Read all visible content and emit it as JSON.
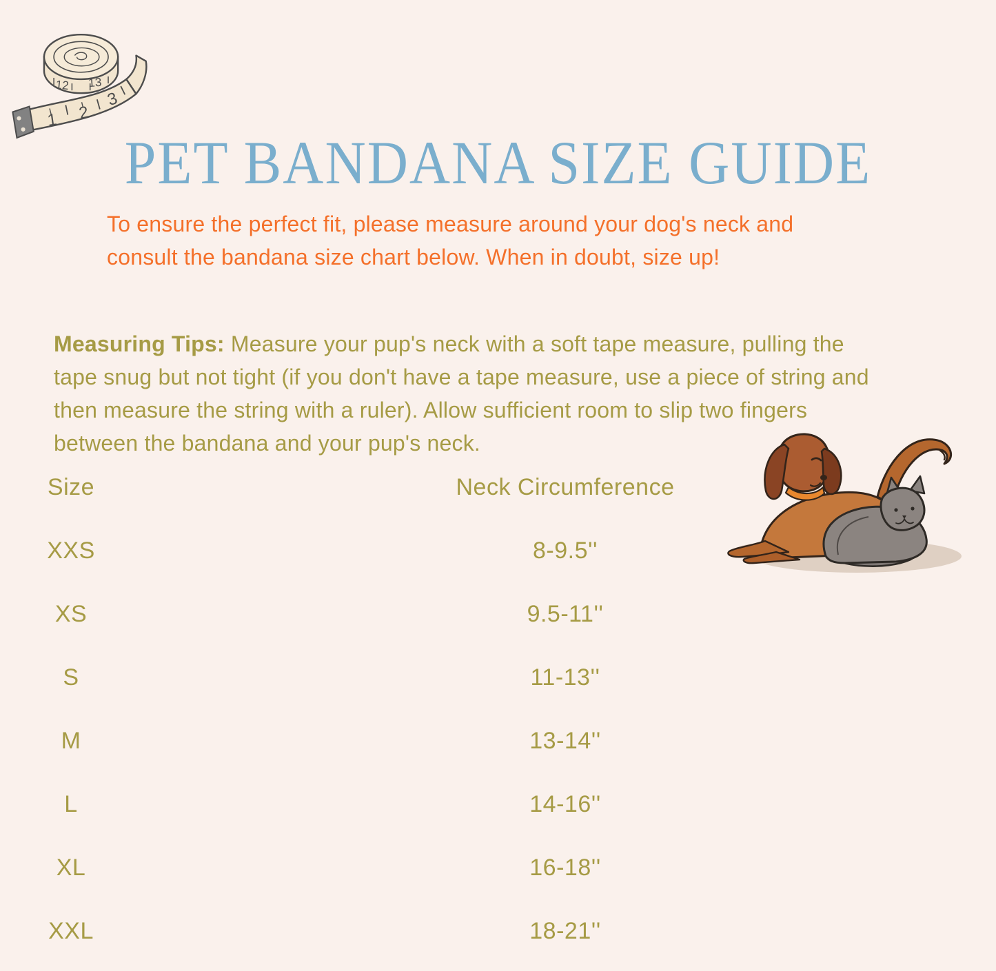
{
  "page": {
    "title": "PET BANDANA SIZE GUIDE",
    "intro_text": "To ensure the perfect fit, please measure around your dog's neck and\nconsult the bandana size chart below. When in doubt, size up!",
    "tips_label": "Measuring Tips:",
    "tips_text": " Measure your pup's neck with a soft tape measure, pulling the\ntape snug but not tight (if you don't have a tape measure, use a piece of string and\nthen measure the string with a ruler). Allow sufficient room to slip two fingers\nbetween the bandana and your pup's neck."
  },
  "size_table": {
    "headers": {
      "size": "Size",
      "neck": "Neck Circumference"
    },
    "rows": [
      {
        "size": "XXS",
        "neck": "8-9.5''"
      },
      {
        "size": "XS",
        "neck": "9.5-11''"
      },
      {
        "size": "S",
        "neck": "11-13''"
      },
      {
        "size": "M",
        "neck": "13-14''"
      },
      {
        "size": "L",
        "neck": "14-16''"
      },
      {
        "size": "XL",
        "neck": "16-18''"
      },
      {
        "size": "XXL",
        "neck": "18-21''"
      }
    ]
  },
  "illustrations": {
    "tape_measure": {
      "name": "tape-measure-illustration",
      "tape_numbers": [
        "1",
        "2",
        "3"
      ],
      "roll_numbers": [
        "12",
        "13"
      ]
    },
    "pets": {
      "name": "dog-and-cat-illustration"
    }
  },
  "colors": {
    "bg": "#faf1ec",
    "title": "#7aaecd",
    "intro": "#f4702a",
    "tips": "#a69b45",
    "tableText": "#a69b45"
  }
}
